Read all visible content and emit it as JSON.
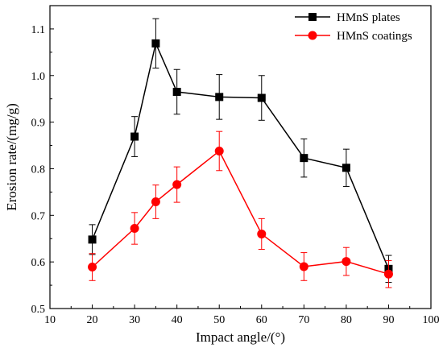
{
  "chart_data": {
    "type": "line",
    "title": "",
    "xlabel": "Impact angle/(°)",
    "ylabel": "Erosion rate/(mg/g)",
    "xlim": [
      10,
      100
    ],
    "ylim": [
      0.5,
      1.15
    ],
    "x_ticks": [
      10,
      20,
      30,
      40,
      50,
      60,
      70,
      80,
      90,
      100
    ],
    "y_ticks": [
      0.5,
      0.6,
      0.7,
      0.8,
      0.9,
      1.0,
      1.1
    ],
    "x_tick_labels": [
      "10",
      "20",
      "30",
      "40",
      "50",
      "60",
      "70",
      "80",
      "90",
      "100"
    ],
    "y_tick_labels": [
      "0.5",
      "0.6",
      "0.7",
      "0.8",
      "0.9",
      "1.0",
      "1.1"
    ],
    "grid": false,
    "legend_position": "top-right",
    "series": [
      {
        "name": "HMnS plates",
        "color": "#000000",
        "marker": "square",
        "x": [
          20,
          30,
          35,
          40,
          50,
          60,
          70,
          80,
          90
        ],
        "y": [
          0.648,
          0.869,
          1.069,
          0.965,
          0.954,
          0.952,
          0.823,
          0.802,
          0.585
        ],
        "error": [
          0.032,
          0.043,
          0.053,
          0.048,
          0.048,
          0.048,
          0.041,
          0.04,
          0.029
        ]
      },
      {
        "name": "HMnS coatings",
        "color": "#ff0000",
        "marker": "circle",
        "x": [
          20,
          30,
          35,
          40,
          50,
          60,
          70,
          80,
          90
        ],
        "y": [
          0.589,
          0.672,
          0.729,
          0.766,
          0.838,
          0.66,
          0.59,
          0.601,
          0.574
        ],
        "error": [
          0.029,
          0.034,
          0.036,
          0.038,
          0.042,
          0.033,
          0.03,
          0.03,
          0.029
        ]
      }
    ]
  }
}
